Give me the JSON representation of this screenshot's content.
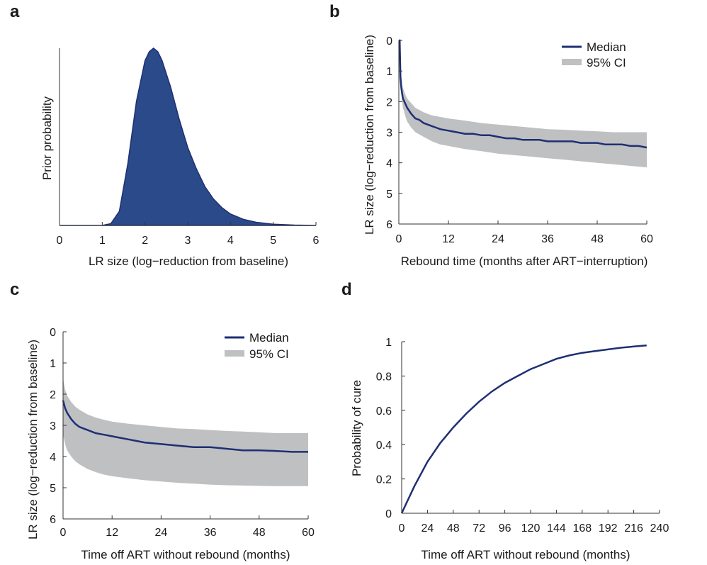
{
  "colors": {
    "line": "#1f2f73",
    "fill_dark": "#2b4a8a",
    "ci_band": "#bfc0c2",
    "axis": "#333333"
  },
  "chart_data": [
    {
      "panel": "a",
      "type": "area",
      "title": "",
      "xlabel": "LR size (log−reduction from baseline)",
      "ylabel": "Prior probability",
      "xlim": [
        0,
        6
      ],
      "ylim": [
        0,
        1
      ],
      "xticks": [
        "0",
        "1",
        "2",
        "3",
        "4",
        "5",
        "6"
      ],
      "y_ticks_shown": false,
      "x": [
        0,
        1.0,
        1.2,
        1.4,
        1.6,
        1.8,
        2.0,
        2.1,
        2.2,
        2.3,
        2.4,
        2.6,
        2.8,
        3.0,
        3.2,
        3.4,
        3.6,
        3.8,
        4.0,
        4.3,
        4.6,
        5.0,
        5.5,
        6.0
      ],
      "y": [
        0,
        0.0,
        0.01,
        0.08,
        0.35,
        0.7,
        0.93,
        0.98,
        1.0,
        0.98,
        0.93,
        0.78,
        0.6,
        0.44,
        0.32,
        0.22,
        0.15,
        0.1,
        0.065,
        0.035,
        0.018,
        0.007,
        0.002,
        0.0
      ]
    },
    {
      "panel": "b",
      "type": "line",
      "title": "",
      "xlabel": "Rebound time (months after ART−interruption)",
      "ylabel": "LR size (log−reduction from baseline)",
      "xlim": [
        0,
        60
      ],
      "ylim": [
        0,
        6
      ],
      "y_inverted": true,
      "xticks": [
        "0",
        "12",
        "24",
        "36",
        "48",
        "60"
      ],
      "yticks": [
        "0",
        "1",
        "2",
        "3",
        "4",
        "5",
        "6"
      ],
      "legend": {
        "position": "top-right",
        "entries": [
          "Median",
          "95% CI"
        ]
      },
      "series": [
        {
          "name": "Median",
          "x": [
            0,
            0.2,
            0.4,
            0.6,
            0.8,
            1.0,
            1.5,
            2,
            3,
            4,
            5,
            6,
            7,
            8,
            9,
            10,
            12,
            14,
            16,
            18,
            20,
            22,
            24,
            26,
            28,
            30,
            32,
            34,
            36,
            38,
            40,
            42,
            44,
            46,
            48,
            50,
            52,
            54,
            56,
            58,
            60
          ],
          "y": [
            0,
            0,
            1.2,
            1.55,
            1.75,
            1.9,
            2.05,
            2.2,
            2.4,
            2.55,
            2.6,
            2.7,
            2.75,
            2.8,
            2.85,
            2.9,
            2.95,
            3.0,
            3.05,
            3.05,
            3.1,
            3.1,
            3.15,
            3.2,
            3.2,
            3.25,
            3.25,
            3.25,
            3.3,
            3.3,
            3.3,
            3.3,
            3.35,
            3.35,
            3.35,
            3.4,
            3.4,
            3.4,
            3.45,
            3.45,
            3.5
          ]
        },
        {
          "name": "95% CI",
          "x": [
            0,
            0.2,
            0.4,
            0.6,
            0.8,
            1.0,
            1.5,
            2,
            3,
            4,
            6,
            8,
            10,
            12,
            16,
            20,
            24,
            28,
            32,
            36,
            40,
            44,
            48,
            52,
            56,
            60
          ],
          "lower": [
            0,
            0,
            0.9,
            1.2,
            1.45,
            1.55,
            1.75,
            1.9,
            2.05,
            2.2,
            2.35,
            2.45,
            2.5,
            2.55,
            2.62,
            2.7,
            2.75,
            2.8,
            2.85,
            2.9,
            2.92,
            2.95,
            2.97,
            3.0,
            3.0,
            3.0
          ],
          "upper": [
            0,
            0,
            1.4,
            1.75,
            2.0,
            2.2,
            2.45,
            2.65,
            2.85,
            3.0,
            3.15,
            3.3,
            3.4,
            3.45,
            3.55,
            3.62,
            3.7,
            3.75,
            3.8,
            3.85,
            3.9,
            3.95,
            4.0,
            4.05,
            4.1,
            4.15
          ]
        }
      ]
    },
    {
      "panel": "c",
      "type": "line",
      "title": "",
      "xlabel": "Time off ART without rebound (months)",
      "ylabel": "LR size (log−reduction from baseline)",
      "xlim": [
        0,
        60
      ],
      "ylim": [
        0,
        6
      ],
      "y_inverted": true,
      "xticks": [
        "0",
        "12",
        "24",
        "36",
        "48",
        "60"
      ],
      "yticks": [
        "0",
        "1",
        "2",
        "3",
        "4",
        "5",
        "6"
      ],
      "legend": {
        "position": "top-right",
        "entries": [
          "Median",
          "95% CI"
        ]
      },
      "series": [
        {
          "name": "Median",
          "x": [
            0,
            0.5,
            1,
            2,
            3,
            4,
            5,
            6,
            8,
            10,
            12,
            14,
            16,
            18,
            20,
            24,
            28,
            32,
            36,
            40,
            44,
            48,
            52,
            56,
            60
          ],
          "y": [
            2.2,
            2.45,
            2.6,
            2.8,
            2.95,
            3.05,
            3.1,
            3.15,
            3.25,
            3.3,
            3.35,
            3.4,
            3.45,
            3.5,
            3.55,
            3.6,
            3.65,
            3.7,
            3.7,
            3.75,
            3.8,
            3.8,
            3.82,
            3.85,
            3.85
          ]
        },
        {
          "name": "95% CI",
          "x": [
            0,
            0.5,
            1,
            2,
            3,
            4,
            6,
            8,
            10,
            12,
            16,
            20,
            24,
            28,
            32,
            36,
            40,
            44,
            48,
            52,
            56,
            60
          ],
          "lower": [
            1.5,
            1.85,
            2.05,
            2.25,
            2.4,
            2.5,
            2.65,
            2.75,
            2.82,
            2.88,
            2.95,
            3.0,
            3.05,
            3.1,
            3.12,
            3.15,
            3.18,
            3.2,
            3.22,
            3.25,
            3.25,
            3.25
          ],
          "upper": [
            3.3,
            3.6,
            3.8,
            4.0,
            4.15,
            4.25,
            4.4,
            4.5,
            4.58,
            4.63,
            4.7,
            4.76,
            4.8,
            4.84,
            4.87,
            4.9,
            4.92,
            4.93,
            4.94,
            4.95,
            4.95,
            4.95
          ]
        }
      ]
    },
    {
      "panel": "d",
      "type": "line",
      "title": "",
      "xlabel": "Time off ART without rebound (months)",
      "ylabel": "Probability of cure",
      "xlim": [
        0,
        240
      ],
      "ylim": [
        0,
        1
      ],
      "xticks": [
        "0",
        "24",
        "48",
        "72",
        "96",
        "120",
        "144",
        "168",
        "192",
        "216",
        "240"
      ],
      "yticks": [
        "0",
        "0.2",
        "0.4",
        "0.6",
        "0.8",
        "1"
      ],
      "series": [
        {
          "name": "",
          "x": [
            0,
            12,
            24,
            36,
            48,
            60,
            72,
            84,
            96,
            108,
            120,
            132,
            144,
            156,
            168,
            180,
            192,
            204,
            216,
            228
          ],
          "y": [
            0,
            0.16,
            0.3,
            0.41,
            0.5,
            0.58,
            0.65,
            0.71,
            0.76,
            0.8,
            0.84,
            0.87,
            0.9,
            0.92,
            0.935,
            0.945,
            0.955,
            0.965,
            0.972,
            0.978
          ]
        }
      ]
    }
  ]
}
